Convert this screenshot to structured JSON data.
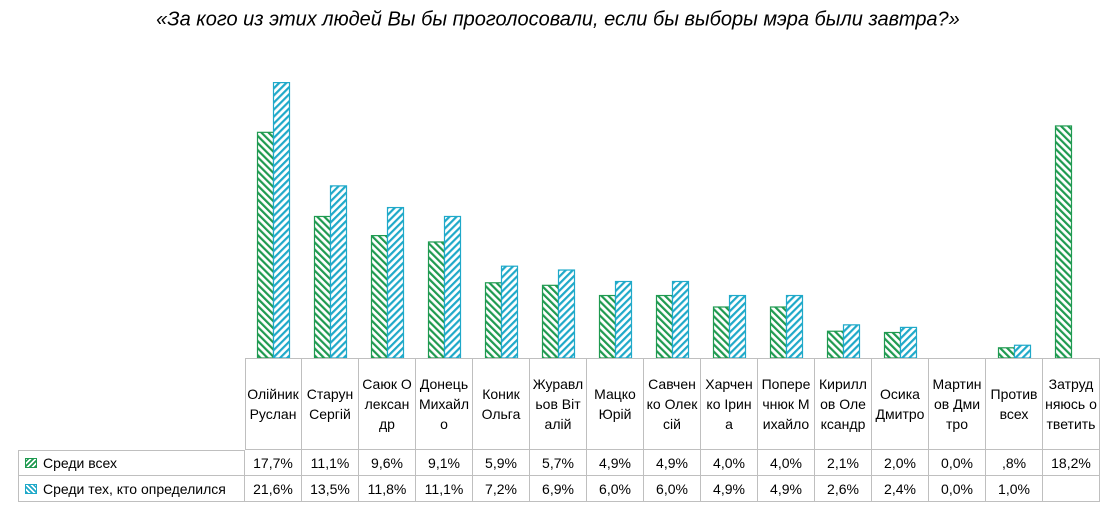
{
  "chart_data": {
    "type": "bar",
    "title": "«За кого из этих людей Вы бы проголосовали, если бы выборы мэра были завтра?»",
    "categories": [
      "Олійник Руслан",
      "Старун Сергій",
      "Саюк Олександр",
      "Донець Михайло",
      "Коник Ольга",
      "Журавльов Віталій",
      "Мацко Юрій",
      "Савченко Олексій",
      "Харченко Ірина",
      "Поперечнюк Михайло",
      "Кириллов Олександр",
      "Осика Дмитро",
      "Мартинов Дмитро",
      "Против всех",
      "Затрудняюсь ответить"
    ],
    "series": [
      {
        "name": "Среди всех",
        "color": "#1f9a50",
        "values": [
          17.7,
          11.1,
          9.6,
          9.1,
          5.9,
          5.7,
          4.9,
          4.9,
          4.0,
          4.0,
          2.1,
          2.0,
          0.0,
          0.8,
          18.2
        ],
        "value_labels": [
          "17,7%",
          "11,1%",
          "9,6%",
          "9,1%",
          "5,9%",
          "5,7%",
          "4,9%",
          "4,9%",
          "4,0%",
          "4,0%",
          "2,1%",
          "2,0%",
          "0,0%",
          ",8%",
          "18,2%"
        ]
      },
      {
        "name": "Среди тех, кто определился",
        "color": "#1fa9c9",
        "values": [
          21.6,
          13.5,
          11.8,
          11.1,
          7.2,
          6.9,
          6.0,
          6.0,
          4.9,
          4.9,
          2.6,
          2.4,
          0.0,
          1.0,
          null
        ],
        "value_labels": [
          "21,6%",
          "13,5%",
          "11,8%",
          "11,1%",
          "7,2%",
          "6,9%",
          "6,0%",
          "6,0%",
          "4,9%",
          "4,9%",
          "2,6%",
          "2,4%",
          "0,0%",
          "1,0%",
          null
        ]
      }
    ]
  }
}
